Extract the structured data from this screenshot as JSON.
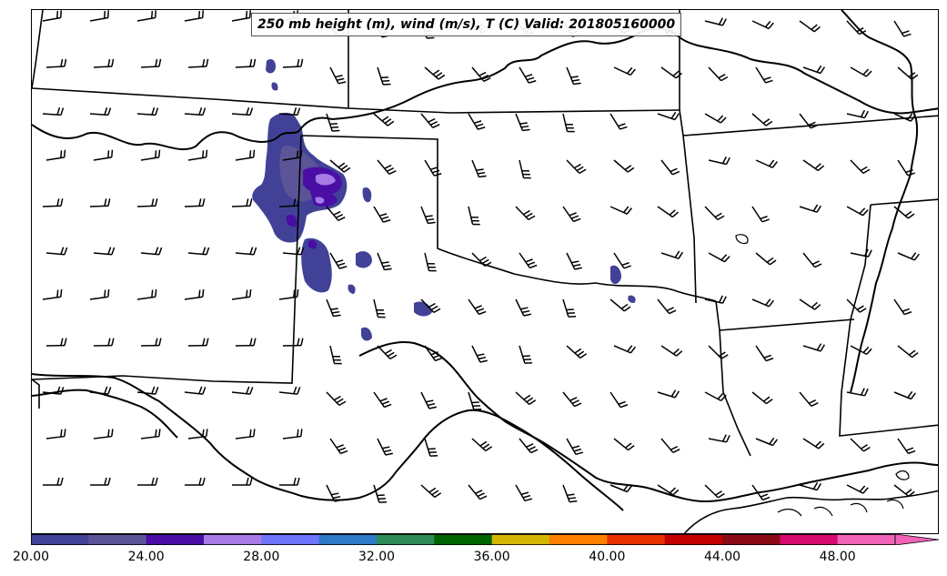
{
  "title": "250 mb height (m), wind (m/s), T (C) Valid: 201805160000",
  "colorbar": {
    "colors": [
      "#414297",
      "#5b5597",
      "#4a0ea5",
      "#a77ae6",
      "#6f74fb",
      "#2f79c9",
      "#2e8b57",
      "#006400",
      "#d5b503",
      "#fd7f00",
      "#e83100",
      "#c30000",
      "#8b0a16",
      "#d6096f",
      "#f063b7"
    ],
    "ticks": [
      "20.00",
      "24.00",
      "28.00",
      "32.00",
      "36.00",
      "40.00",
      "44.00",
      "48.00"
    ],
    "extend": "max"
  },
  "shading_colors": {
    "level1": "#414297",
    "level2": "#5b5597",
    "level3": "#4a0ea5",
    "level4": "#a77ae6"
  },
  "map": {
    "region": "Southern Plains, USA",
    "features": [
      "state-borders",
      "coastline",
      "rivers",
      "wind-barbs"
    ]
  }
}
